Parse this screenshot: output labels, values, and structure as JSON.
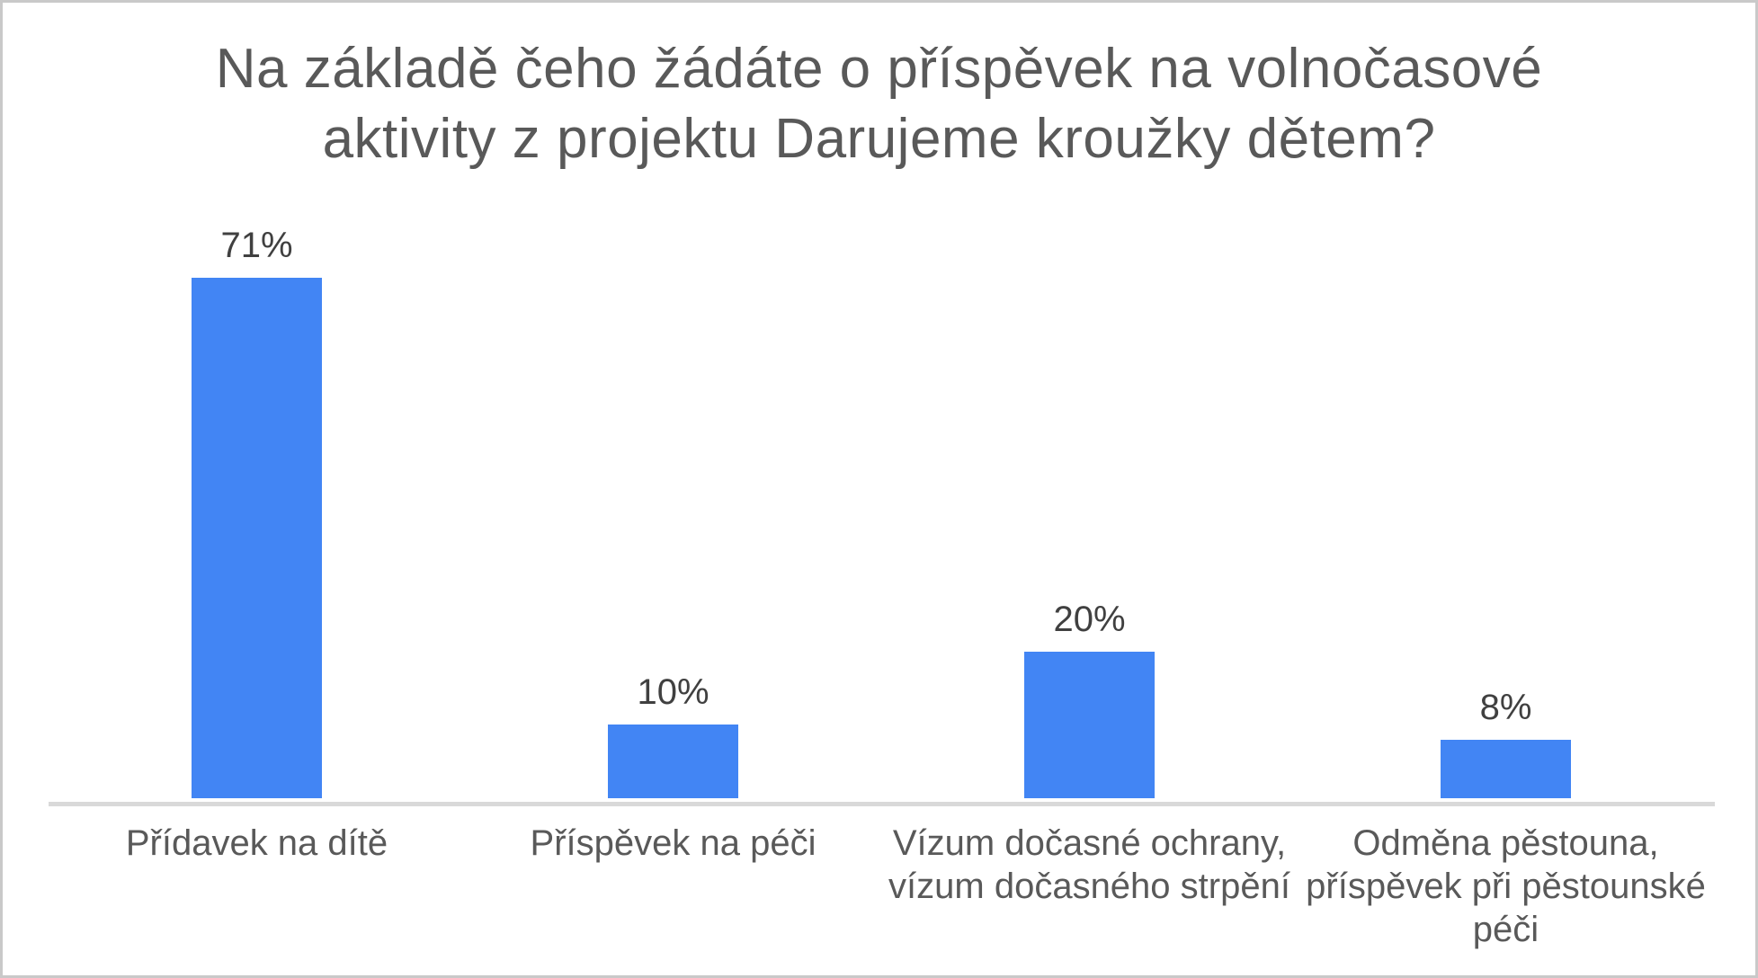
{
  "chart_data": {
    "type": "bar",
    "title": "Na základě čeho žádáte o příspěvek na volnočasové aktivity z projektu Darujeme kroužky dětem?",
    "title_lines": [
      "Na základě čeho žádáte o příspěvek na volnočasové",
      "aktivity z projektu Darujeme kroužky dětem?"
    ],
    "categories": [
      "Přídavek na dítě",
      "Příspěvek na péči",
      "Vízum dočasné ochrany, vízum dočasného strpění",
      "Odměna pěstouna, příspěvek při pěstounské péči"
    ],
    "category_lines": [
      [
        "Přídavek na dítě"
      ],
      [
        "Příspěvek na péči"
      ],
      [
        "Vízum dočasné ochrany,",
        "vízum dočasného strpění"
      ],
      [
        "Odměna pěstouna,",
        "příspěvek při pěstounské",
        "péči"
      ]
    ],
    "values": [
      71,
      10,
      20,
      8
    ],
    "value_labels": [
      "71%",
      "10%",
      "20%",
      "8%"
    ],
    "unit": "%",
    "legend": "none",
    "grid": false,
    "y_axis_visible": false,
    "colors": {
      "bar": "#4285f4",
      "axis_line": "#d9d9d9",
      "title": "#595959",
      "value_label": "#404040",
      "category_label": "#595959"
    }
  }
}
